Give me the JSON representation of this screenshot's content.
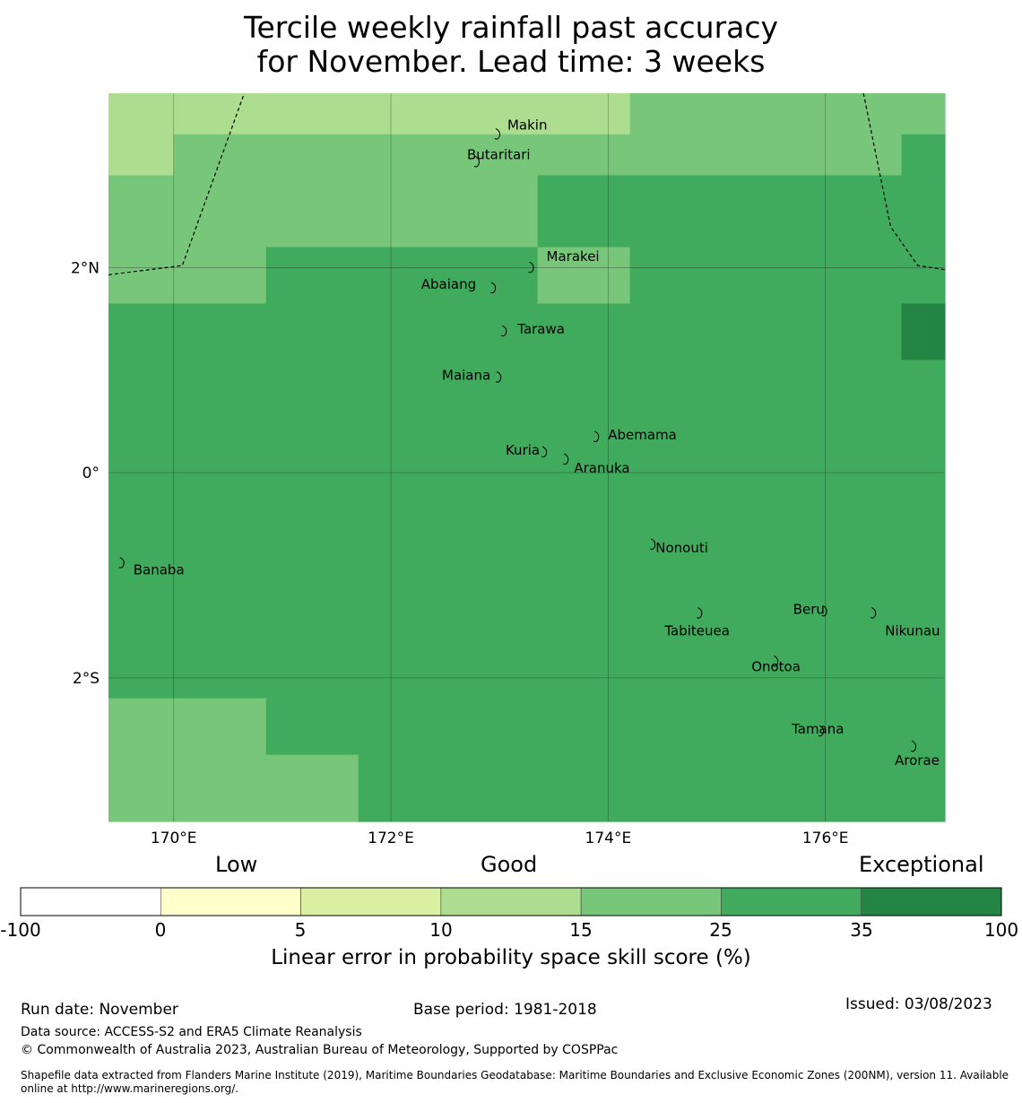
{
  "title": {
    "line1": "Tercile weekly rainfall past accuracy",
    "line2": "for November. Lead time: 3 weeks"
  },
  "map": {
    "lon_range": [
      169.4,
      177.1
    ],
    "lat_range": [
      -3.4,
      3.7
    ],
    "grid_step_deg": 0.5556,
    "cells": [
      {
        "lon": [
          169.4,
          170.0
        ],
        "lat": [
          2.9,
          3.7
        ],
        "cat": "10-15"
      },
      {
        "lon": [
          170.0,
          174.2
        ],
        "lat": [
          3.3,
          3.7
        ],
        "cat": "10-15"
      },
      {
        "lon": [
          174.2,
          177.1
        ],
        "lat": [
          3.3,
          3.7
        ],
        "cat": "15-25"
      },
      {
        "lon": [
          170.0,
          176.7
        ],
        "lat": [
          2.9,
          3.3
        ],
        "cat": "15-25"
      },
      {
        "lon": [
          176.7,
          177.1
        ],
        "lat": [
          2.9,
          3.3
        ],
        "cat": "25-35"
      },
      {
        "lon": [
          169.4,
          173.35
        ],
        "lat": [
          2.2,
          2.9
        ],
        "cat": "15-25"
      },
      {
        "lon": [
          173.35,
          177.1
        ],
        "lat": [
          2.2,
          2.9
        ],
        "cat": "25-35"
      },
      {
        "lon": [
          169.4,
          170.85
        ],
        "lat": [
          1.65,
          2.2
        ],
        "cat": "15-25"
      },
      {
        "lon": [
          170.85,
          173.35
        ],
        "lat": [
          1.65,
          2.2
        ],
        "cat": "25-35"
      },
      {
        "lon": [
          173.35,
          174.2
        ],
        "lat": [
          1.65,
          2.2
        ],
        "cat": "15-25"
      },
      {
        "lon": [
          174.2,
          177.1
        ],
        "lat": [
          1.65,
          2.2
        ],
        "cat": "25-35"
      },
      {
        "lon": [
          169.4,
          176.7
        ],
        "lat": [
          1.1,
          1.65
        ],
        "cat": "25-35"
      },
      {
        "lon": [
          176.7,
          177.1
        ],
        "lat": [
          1.1,
          1.65
        ],
        "cat": "35-100"
      },
      {
        "lon": [
          169.4,
          177.1
        ],
        "lat": [
          -2.2,
          1.1
        ],
        "cat": "25-35"
      },
      {
        "lon": [
          169.4,
          170.85
        ],
        "lat": [
          -3.4,
          -2.2
        ],
        "cat": "15-25"
      },
      {
        "lon": [
          170.85,
          177.1
        ],
        "lat": [
          -2.75,
          -2.2
        ],
        "cat": "25-35"
      },
      {
        "lon": [
          170.85,
          171.7
        ],
        "lat": [
          -3.4,
          -2.75
        ],
        "cat": "15-25"
      },
      {
        "lon": [
          171.7,
          177.1
        ],
        "lat": [
          -3.4,
          -2.75
        ],
        "cat": "25-35"
      }
    ],
    "lon_ticks": [
      {
        "value": 170,
        "label": "170°E"
      },
      {
        "value": 172,
        "label": "172°E"
      },
      {
        "value": 174,
        "label": "174°E"
      },
      {
        "value": 176,
        "label": "176°E"
      }
    ],
    "lat_ticks": [
      {
        "value": 2,
        "label": "2°N"
      },
      {
        "value": 0,
        "label": "0°"
      },
      {
        "value": -2,
        "label": "2°S"
      }
    ],
    "eez_boundary_west": [
      [
        169.4,
        1.93
      ],
      [
        170.08,
        2.02
      ],
      [
        170.65,
        3.7
      ]
    ],
    "eez_boundary_east": [
      [
        176.35,
        3.7
      ],
      [
        176.6,
        2.4
      ],
      [
        176.85,
        2.02
      ],
      [
        177.1,
        1.98
      ]
    ],
    "islands": [
      {
        "name": "Makin",
        "lon": 172.99,
        "lat": 3.32
      },
      {
        "name": "Butaritari",
        "lon": 172.8,
        "lat": 3.05
      },
      {
        "name": "Marakei",
        "lon": 173.3,
        "lat": 2.02
      },
      {
        "name": "Abaiang",
        "lon": 172.95,
        "lat": 1.82
      },
      {
        "name": "Tarawa",
        "lon": 173.05,
        "lat": 1.4
      },
      {
        "name": "Maiana",
        "lon": 173.0,
        "lat": 0.95
      },
      {
        "name": "Abemama",
        "lon": 173.9,
        "lat": 0.37
      },
      {
        "name": "Kuria",
        "lon": 173.42,
        "lat": 0.22
      },
      {
        "name": "Aranuka",
        "lon": 173.62,
        "lat": 0.15
      },
      {
        "name": "Nonouti",
        "lon": 174.42,
        "lat": -0.68
      },
      {
        "name": "Banaba",
        "lon": 169.53,
        "lat": -0.86
      },
      {
        "name": "Tabiteuea",
        "lon": 174.85,
        "lat": -1.35
      },
      {
        "name": "Beru",
        "lon": 176.0,
        "lat": -1.33
      },
      {
        "name": "Nikunau",
        "lon": 176.45,
        "lat": -1.35
      },
      {
        "name": "Onotoa",
        "lon": 175.55,
        "lat": -1.82
      },
      {
        "name": "Tamana",
        "lon": 175.97,
        "lat": -2.5
      },
      {
        "name": "Arorae",
        "lon": 176.82,
        "lat": -2.65
      }
    ]
  },
  "colorbar": {
    "categories": [
      "Low",
      "Good",
      "Exceptional"
    ],
    "bins": [
      {
        "key": "-100-0",
        "color": "#ffffff"
      },
      {
        "key": "0-5",
        "color": "#ffffcc"
      },
      {
        "key": "5-10",
        "color": "#d9f0a3"
      },
      {
        "key": "10-15",
        "color": "#addd8e"
      },
      {
        "key": "15-25",
        "color": "#78c679"
      },
      {
        "key": "25-35",
        "color": "#41ab5d"
      },
      {
        "key": "35-100",
        "color": "#238443"
      }
    ],
    "tick_labels": [
      "-100",
      "0",
      "5",
      "10",
      "15",
      "25",
      "35",
      "100"
    ],
    "label": "Linear error in probability space skill score (%)"
  },
  "footer": {
    "run_date": "Run date: November",
    "base_period": "Base period: 1981-2018",
    "issued": "Issued: 03/08/2023",
    "data_source": "Data source: ACCESS-S2 and ERA5 Climate Reanalysis",
    "copyright": "© Commonwealth of Australia 2023, Australian Bureau of Meteorology, Supported by COSPPac",
    "shapefile": "Shapefile data extracted from Flanders Marine Institute (2019), Maritime Boundaries Geodatabase: Maritime Boundaries and Exclusive Economic Zones (200NM), version 11. Available online at http://www.marineregions.org/."
  }
}
